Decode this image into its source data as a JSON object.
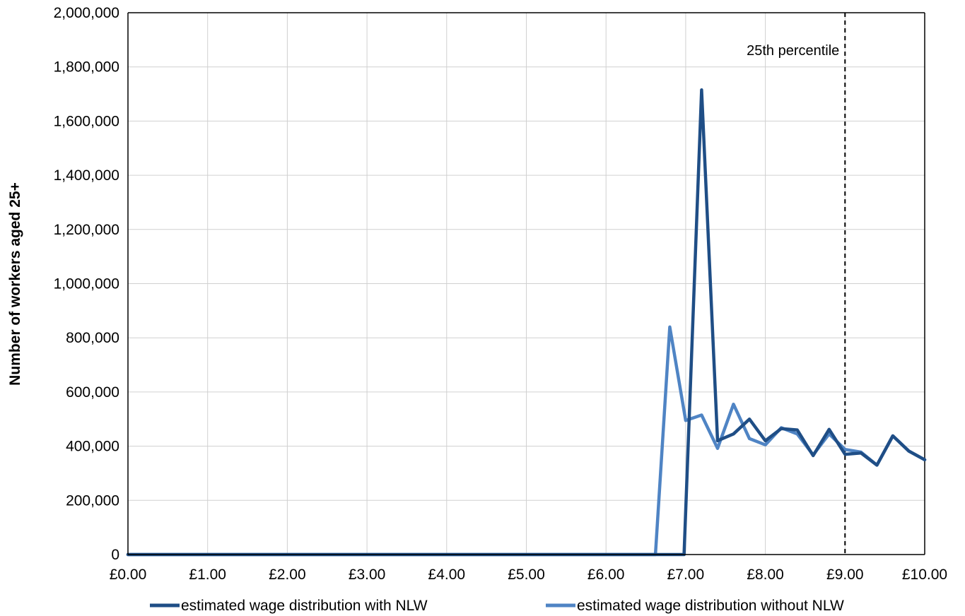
{
  "chart_data": {
    "type": "line",
    "ylabel": "Number  of  workers aged 25+",
    "xlabel": "",
    "xlim": [
      0,
      10
    ],
    "ylim": [
      0,
      2000000
    ],
    "x_ticks": [
      0,
      1,
      2,
      3,
      4,
      5,
      6,
      7,
      8,
      9,
      10
    ],
    "x_tick_labels": [
      "£0.00",
      "£1.00",
      "£2.00",
      "£3.00",
      "£4.00",
      "£5.00",
      "£6.00",
      "£7.00",
      "£8.00",
      "£9.00",
      "£10.00"
    ],
    "y_ticks": [
      0,
      200000,
      400000,
      600000,
      800000,
      1000000,
      1200000,
      1400000,
      1600000,
      1800000,
      2000000
    ],
    "y_tick_labels": [
      "0",
      "200,000",
      "400,000",
      "600,000",
      "800,000",
      "1,000,000",
      "1,200,000",
      "1,400,000",
      "1,600,000",
      "1,800,000",
      "2,000,000"
    ],
    "grid": true,
    "legend": "bottom",
    "annotation": {
      "label": "25th percentile",
      "x": 9.0
    },
    "series": [
      {
        "name": "estimated wage distribution with NLW",
        "color": "#1f4e86",
        "points": [
          [
            0,
            0
          ],
          [
            6.98,
            0
          ],
          [
            7.2,
            1715000
          ],
          [
            7.4,
            420000
          ],
          [
            7.6,
            445000
          ],
          [
            7.8,
            500000
          ],
          [
            8.0,
            420000
          ],
          [
            8.2,
            465000
          ],
          [
            8.4,
            460000
          ],
          [
            8.6,
            365000
          ],
          [
            8.8,
            462000
          ],
          [
            9.0,
            370000
          ],
          [
            9.2,
            375000
          ],
          [
            9.4,
            330000
          ],
          [
            9.6,
            438000
          ],
          [
            9.8,
            382000
          ],
          [
            10.0,
            350000
          ]
        ]
      },
      {
        "name": "estimated wage distribution without NLW",
        "color": "#4f84c4",
        "points": [
          [
            0,
            0
          ],
          [
            6.62,
            0
          ],
          [
            6.8,
            840000
          ],
          [
            7.0,
            495000
          ],
          [
            7.2,
            515000
          ],
          [
            7.4,
            392000
          ],
          [
            7.6,
            555000
          ],
          [
            7.8,
            428000
          ],
          [
            8.0,
            405000
          ],
          [
            8.2,
            468000
          ],
          [
            8.4,
            445000
          ],
          [
            8.6,
            368000
          ],
          [
            8.8,
            445000
          ],
          [
            9.0,
            388000
          ],
          [
            9.2,
            378000
          ],
          [
            9.4,
            330000
          ],
          [
            9.6,
            438000
          ],
          [
            9.8,
            382000
          ],
          [
            10.0,
            350000
          ]
        ]
      }
    ]
  }
}
